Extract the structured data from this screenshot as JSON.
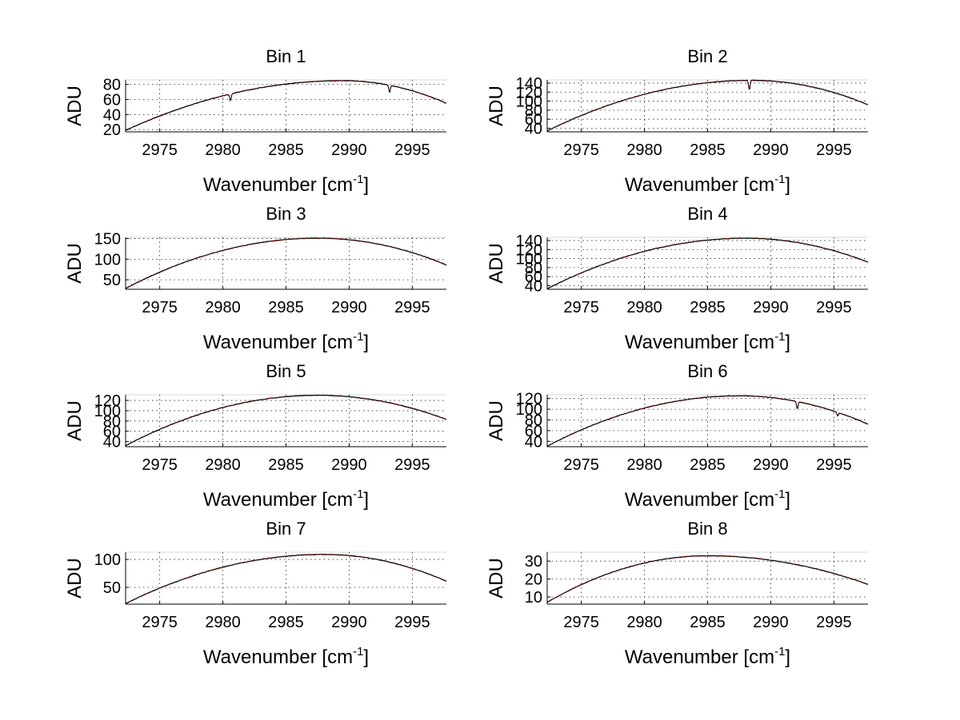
{
  "figure": {
    "background": "#ffffff"
  },
  "chart_data": [
    {
      "type": "line",
      "title": "Bin 1",
      "xlabel": "Wavenumber [cm",
      "xlabel_sup": "-1",
      "xlabel_end": "]",
      "ylabel": "ADU",
      "xlim": [
        2972.3,
        2997.7
      ],
      "ylim": [
        17,
        86
      ],
      "xticks": [
        2975,
        2980,
        2985,
        2990,
        2995
      ],
      "yticks": [
        20,
        40,
        60,
        80
      ],
      "grid": true,
      "baseline": {
        "start": 19,
        "peak": 85,
        "peak_x": 2989.5,
        "end": 55
      },
      "features": [
        {
          "x": 2980.6,
          "depth": 9
        },
        {
          "x": 2993.2,
          "depth": 10
        }
      ],
      "series_colors": [
        "#0000ff",
        "#ffcc00",
        "#00cccc",
        "#ff0000",
        "#000000"
      ]
    },
    {
      "type": "line",
      "title": "Bin 2",
      "xlabel": "Wavenumber [cm",
      "xlabel_sup": "-1",
      "xlabel_end": "]",
      "ylabel": "ADU",
      "xlim": [
        2972.3,
        2997.7
      ],
      "ylim": [
        32,
        147
      ],
      "xticks": [
        2975,
        2980,
        2985,
        2990,
        2995
      ],
      "yticks": [
        40,
        60,
        80,
        100,
        120,
        140
      ],
      "grid": true,
      "baseline": {
        "start": 34,
        "peak": 146,
        "peak_x": 2988.5,
        "end": 92
      },
      "features": [
        {
          "x": 2988.3,
          "depth": 22
        }
      ],
      "series_colors": [
        "#0000ff",
        "#ffcc00",
        "#00cccc",
        "#ff0000",
        "#000000"
      ]
    },
    {
      "type": "line",
      "title": "Bin 3",
      "xlabel": "Wavenumber [cm",
      "xlabel_sup": "-1",
      "xlabel_end": "]",
      "ylabel": "ADU",
      "xlim": [
        2972.3,
        2997.7
      ],
      "ylim": [
        27,
        153
      ],
      "xticks": [
        2975,
        2980,
        2985,
        2990,
        2995
      ],
      "yticks": [
        50,
        100,
        150
      ],
      "grid": true,
      "baseline": {
        "start": 29,
        "peak": 151,
        "peak_x": 2987.5,
        "end": 86
      },
      "features": [],
      "series_colors": [
        "#0000ff",
        "#ffcc00",
        "#00cccc",
        "#ff0000",
        "#000000"
      ]
    },
    {
      "type": "line",
      "title": "Bin 4",
      "xlabel": "Wavenumber [cm",
      "xlabel_sup": "-1",
      "xlabel_end": "]",
      "ylabel": "ADU",
      "xlim": [
        2972.3,
        2997.7
      ],
      "ylim": [
        32,
        147
      ],
      "xticks": [
        2975,
        2980,
        2985,
        2990,
        2995
      ],
      "yticks": [
        40,
        60,
        80,
        100,
        120,
        140
      ],
      "grid": true,
      "baseline": {
        "start": 33,
        "peak": 145,
        "peak_x": 2988,
        "end": 92
      },
      "features": [],
      "series_colors": [
        "#0000ff",
        "#ffcc00",
        "#00cccc",
        "#ff0000",
        "#000000"
      ]
    },
    {
      "type": "line",
      "title": "Bin 5",
      "xlabel": "Wavenumber [cm",
      "xlabel_sup": "-1",
      "xlabel_end": "]",
      "ylabel": "ADU",
      "xlim": [
        2972.3,
        2997.7
      ],
      "ylim": [
        30,
        131
      ],
      "xticks": [
        2975,
        2980,
        2985,
        2990,
        2995
      ],
      "yticks": [
        40,
        60,
        80,
        100,
        120
      ],
      "grid": true,
      "baseline": {
        "start": 32,
        "peak": 130,
        "peak_x": 2987.5,
        "end": 83
      },
      "features": [],
      "series_colors": [
        "#0000ff",
        "#ffcc00",
        "#00cccc",
        "#ff0000",
        "#000000"
      ]
    },
    {
      "type": "line",
      "title": "Bin 6",
      "xlabel": "Wavenumber [cm",
      "xlabel_sup": "-1",
      "xlabel_end": "]",
      "ylabel": "ADU",
      "xlim": [
        2972.3,
        2997.7
      ],
      "ylim": [
        30,
        127
      ],
      "xticks": [
        2975,
        2980,
        2985,
        2990,
        2995
      ],
      "yticks": [
        40,
        60,
        80,
        100,
        120
      ],
      "grid": true,
      "baseline": {
        "start": 31,
        "peak": 125,
        "peak_x": 2987.5,
        "end": 72
      },
      "features": [
        {
          "x": 2992.1,
          "depth": 14
        },
        {
          "x": 2995.3,
          "depth": 7
        }
      ],
      "series_colors": [
        "#0000ff",
        "#ffcc00",
        "#00cccc",
        "#ff0000",
        "#000000"
      ]
    },
    {
      "type": "line",
      "title": "Bin 7",
      "xlabel": "Wavenumber [cm",
      "xlabel_sup": "-1",
      "xlabel_end": "]",
      "ylabel": "ADU",
      "xlim": [
        2972.3,
        2997.7
      ],
      "ylim": [
        20,
        113
      ],
      "xticks": [
        2975,
        2980,
        2985,
        2990,
        2995
      ],
      "yticks": [
        50,
        100
      ],
      "grid": true,
      "baseline": {
        "start": 21,
        "peak": 109,
        "peak_x": 2988,
        "end": 61
      },
      "features": [],
      "series_colors": [
        "#0000ff",
        "#ffcc00",
        "#00cccc",
        "#ff0000",
        "#000000"
      ]
    },
    {
      "type": "line",
      "title": "Bin 8",
      "xlabel": "Wavenumber [cm",
      "xlabel_sup": "-1",
      "xlabel_end": "]",
      "ylabel": "ADU",
      "xlim": [
        2972.3,
        2997.7
      ],
      "ylim": [
        6,
        35
      ],
      "xticks": [
        2975,
        2980,
        2985,
        2990,
        2995
      ],
      "yticks": [
        10,
        20,
        30
      ],
      "grid": true,
      "baseline": {
        "start": 7,
        "peak": 33,
        "peak_x": 2985,
        "end": 17
      },
      "features": [],
      "series_colors": [
        "#0000ff",
        "#ffcc00",
        "#00cccc",
        "#ff0000",
        "#000000"
      ]
    }
  ]
}
